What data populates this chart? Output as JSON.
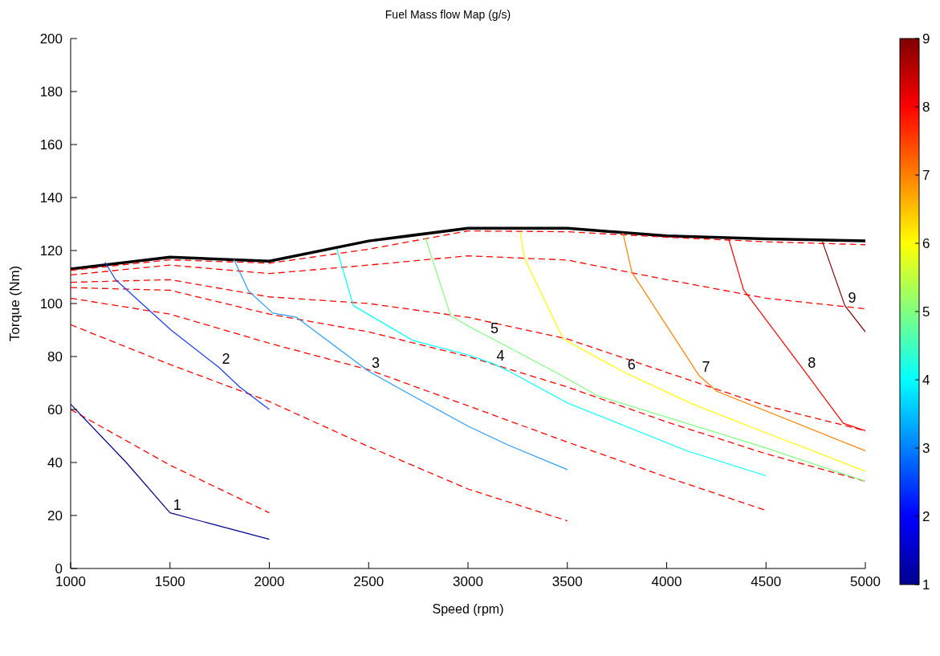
{
  "chart_data": {
    "type": "line",
    "title": "Fuel Mass flow Map (g/s)",
    "xlabel": "Speed (rpm)",
    "ylabel": "Torque (Nm)",
    "xlim": [
      1000,
      5000
    ],
    "xticks": [
      1000,
      1500,
      2000,
      2500,
      3000,
      3500,
      4000,
      4500,
      5000
    ],
    "ylim": [
      0,
      200
    ],
    "yticks": [
      0,
      20,
      40,
      60,
      80,
      100,
      120,
      140,
      160,
      180,
      200
    ],
    "clim": [
      1,
      9
    ],
    "cticks": [
      1,
      2,
      3,
      4,
      5,
      6,
      7,
      8,
      9
    ],
    "grid": false,
    "legend": false,
    "marker": "none",
    "series": [
      {
        "color": "#000000",
        "x": [
          1000,
          1500,
          2000,
          2500,
          3000,
          3500,
          4000,
          4500,
          5000
        ],
        "values": [
          113,
          117.5,
          116,
          123.6,
          128.4,
          128.4,
          125.5,
          124.4,
          123.6
        ]
      },
      {
        "color": "#ff0000",
        "line_style": "dashed",
        "x": [
          1000,
          1500,
          2000,
          2500,
          3000,
          3500,
          4000,
          4500,
          5000
        ],
        "values": [
          112.5,
          116.5,
          115.2,
          120.5,
          127.4,
          127.1,
          125,
          123.3,
          122.2
        ]
      },
      {
        "color": "#ff0000",
        "line_style": "dashed",
        "x": [
          1000,
          1500,
          2000,
          2500,
          3000,
          3500,
          4000,
          4500,
          5000
        ],
        "values": [
          110.8,
          114.5,
          111.3,
          114.5,
          118,
          116.4,
          109,
          102,
          98
        ]
      },
      {
        "color": "#ff0000",
        "line_style": "dashed",
        "x": [
          1000,
          1500,
          2000,
          2500,
          3000,
          3500,
          4000,
          4500,
          5000
        ],
        "values": [
          108,
          109,
          102.5,
          100,
          94.8,
          86.6,
          74,
          61.4,
          52
        ]
      },
      {
        "color": "#ff0000",
        "line_style": "dashed",
        "x": [
          1000,
          1500,
          2000,
          2500,
          3000,
          3500,
          4000,
          4500,
          5000
        ],
        "values": [
          106,
          105,
          96,
          89.3,
          80,
          68.5,
          55.3,
          43.3,
          32.9
        ]
      },
      {
        "color": "#ff0000",
        "line_style": "dashed",
        "x": [
          1000,
          1500,
          2000,
          2500,
          3000,
          3500,
          4000,
          4500
        ],
        "values": [
          102,
          96,
          85,
          75,
          61.4,
          47.7,
          34.5,
          21.9
        ]
      },
      {
        "color": "#ff0000",
        "line_style": "dashed",
        "x": [
          1000,
          1500,
          2000,
          2500,
          3000,
          3500
        ],
        "values": [
          92,
          77,
          63,
          46,
          30,
          18
        ]
      },
      {
        "color": "#ff0000",
        "line_style": "dashed",
        "x": [
          1000,
          1500,
          2000
        ],
        "values": [
          60,
          39,
          21
        ]
      },
      {
        "name": "1",
        "color": "#00008f",
        "x": [
          1000,
          1280,
          1500,
          1700,
          2000
        ],
        "values": [
          62,
          40,
          21,
          17,
          11
        ]
      },
      {
        "name": "2",
        "color": "#1a3cff",
        "x": [
          1173,
          1226,
          1505,
          1745,
          1851,
          2000
        ],
        "values": [
          115.6,
          109,
          90,
          76,
          68.5,
          60
        ]
      },
      {
        "name": "3",
        "color": "#2a9cff",
        "x": [
          1821,
          1896,
          2017,
          2137,
          2499,
          2694,
          3000,
          3202,
          3500
        ],
        "values": [
          116.7,
          104.7,
          96.4,
          94.8,
          74.5,
          66.3,
          53.7,
          46.6,
          37.3
        ]
      },
      {
        "name": "4",
        "color": "#00ffff",
        "x": [
          2340,
          2423,
          2724,
          3000,
          3127,
          3217,
          3500,
          4102,
          4500
        ],
        "values": [
          120.6,
          99.2,
          86,
          80.6,
          77.3,
          74,
          62.5,
          44.4,
          35
        ]
      },
      {
        "name": "5",
        "color": "#80ff80",
        "x": [
          2785,
          2858,
          2913,
          3000,
          3097,
          3442,
          3652,
          4500,
          5000
        ],
        "values": [
          125,
          108,
          95.4,
          91.5,
          87.7,
          74,
          65.2,
          45.5,
          32.9
        ]
      },
      {
        "name": "6",
        "color": "#ffff00",
        "x": [
          3262,
          3285,
          3480,
          3787,
          4132,
          4507,
          5000
        ],
        "values": [
          127,
          117,
          86.6,
          74,
          62,
          51,
          36.7
        ]
      },
      {
        "name": "7",
        "color": "#ff8000",
        "x": [
          3780,
          3825,
          4162,
          4252,
          5000
        ],
        "values": [
          126.6,
          111.8,
          72.9,
          66.9,
          44.4
        ]
      },
      {
        "name": "8",
        "color": "#ff0000",
        "x": [
          4312,
          4387,
          4694,
          4889,
          5000
        ],
        "values": [
          124.4,
          105.2,
          74.5,
          54.8,
          52
        ]
      },
      {
        "name": "9",
        "color": "#800000",
        "x": [
          4784,
          4897,
          5000
        ],
        "values": [
          123.3,
          99.2,
          89.3
        ]
      }
    ]
  }
}
